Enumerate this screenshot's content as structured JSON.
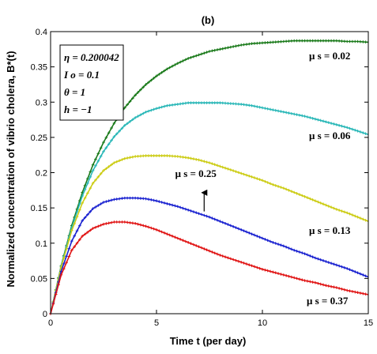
{
  "chart_data": {
    "type": "line",
    "title": "(b)",
    "xlabel": "Time t (per day)",
    "ylabel": "Normalized concentration of vibrio cholera, B*(t)",
    "xlim": [
      0,
      15
    ],
    "ylim": [
      0,
      0.4
    ],
    "xticks": [
      "0",
      "5",
      "10",
      "15"
    ],
    "yticks": [
      "0",
      "0.05",
      "0.1",
      "0.15",
      "0.2",
      "0.25",
      "0.3",
      "0.35",
      "0.4"
    ],
    "grid": false,
    "parameters": [
      "η = 0.200042",
      "I o = 0.1",
      "θ = 1",
      "h = −1"
    ],
    "series": [
      {
        "name": "μ s = 0.02",
        "color": "#1a7a1a",
        "x": [
          0,
          0.5,
          1,
          1.5,
          2,
          2.5,
          3,
          3.5,
          4,
          4.5,
          5,
          5.5,
          6,
          6.5,
          7,
          7.5,
          8,
          8.5,
          9,
          9.5,
          10,
          10.5,
          11,
          11.5,
          12,
          12.5,
          13,
          13.5,
          14,
          14.5,
          15
        ],
        "y": [
          0,
          0.068,
          0.125,
          0.172,
          0.211,
          0.243,
          0.27,
          0.292,
          0.31,
          0.325,
          0.337,
          0.347,
          0.355,
          0.362,
          0.367,
          0.372,
          0.375,
          0.378,
          0.381,
          0.383,
          0.384,
          0.385,
          0.386,
          0.387,
          0.387,
          0.387,
          0.387,
          0.387,
          0.386,
          0.386,
          0.385
        ]
      },
      {
        "name": "μ s = 0.06",
        "color": "#29b7b7",
        "x": [
          0,
          0.5,
          1,
          1.5,
          2,
          2.5,
          3,
          3.5,
          4,
          4.5,
          5,
          5.5,
          6,
          6.5,
          7,
          7.5,
          8,
          8.5,
          9,
          9.5,
          10,
          10.5,
          11,
          11.5,
          12,
          12.5,
          13,
          13.5,
          14,
          14.5,
          15
        ],
        "y": [
          0,
          0.067,
          0.122,
          0.167,
          0.203,
          0.23,
          0.251,
          0.267,
          0.278,
          0.286,
          0.291,
          0.295,
          0.297,
          0.299,
          0.299,
          0.299,
          0.299,
          0.298,
          0.297,
          0.295,
          0.292,
          0.289,
          0.286,
          0.283,
          0.28,
          0.276,
          0.272,
          0.268,
          0.264,
          0.259,
          0.254
        ]
      },
      {
        "name": "μ s = 0.13",
        "color": "#cccc14",
        "x": [
          0,
          0.5,
          1,
          1.5,
          2,
          2.5,
          3,
          3.5,
          4,
          4.5,
          5,
          5.5,
          6,
          6.5,
          7,
          7.5,
          8,
          8.5,
          9,
          9.5,
          10,
          10.5,
          11,
          11.5,
          12,
          12.5,
          13,
          13.5,
          14,
          14.5,
          15
        ],
        "y": [
          0,
          0.066,
          0.118,
          0.157,
          0.185,
          0.203,
          0.214,
          0.22,
          0.223,
          0.224,
          0.224,
          0.224,
          0.223,
          0.221,
          0.218,
          0.214,
          0.209,
          0.204,
          0.199,
          0.194,
          0.189,
          0.183,
          0.178,
          0.172,
          0.166,
          0.16,
          0.154,
          0.148,
          0.143,
          0.137,
          0.131
        ]
      },
      {
        "name": "μ s = 0.25",
        "color": "#1a22d0",
        "x": [
          0,
          0.5,
          1,
          1.5,
          2,
          2.5,
          3,
          3.5,
          4,
          4.5,
          5,
          5.5,
          6,
          6.5,
          7,
          7.5,
          8,
          8.5,
          9,
          9.5,
          10,
          10.5,
          11,
          11.5,
          12,
          12.5,
          13,
          13.5,
          14,
          14.5,
          15
        ],
        "y": [
          0,
          0.06,
          0.103,
          0.132,
          0.149,
          0.158,
          0.162,
          0.164,
          0.164,
          0.163,
          0.16,
          0.156,
          0.152,
          0.147,
          0.142,
          0.137,
          0.131,
          0.125,
          0.119,
          0.113,
          0.107,
          0.101,
          0.096,
          0.09,
          0.085,
          0.079,
          0.074,
          0.069,
          0.064,
          0.058,
          0.052
        ]
      },
      {
        "name": "μ s = 0.37",
        "color": "#e01414",
        "x": [
          0,
          0.5,
          1,
          1.5,
          2,
          2.5,
          3,
          3.5,
          4,
          4.5,
          5,
          5.5,
          6,
          6.5,
          7,
          7.5,
          8,
          8.5,
          9,
          9.5,
          10,
          10.5,
          11,
          11.5,
          12,
          12.5,
          13,
          13.5,
          14,
          14.5,
          15
        ],
        "y": [
          0,
          0.055,
          0.09,
          0.11,
          0.121,
          0.127,
          0.13,
          0.13,
          0.128,
          0.124,
          0.119,
          0.113,
          0.107,
          0.101,
          0.095,
          0.089,
          0.083,
          0.078,
          0.073,
          0.068,
          0.063,
          0.059,
          0.055,
          0.051,
          0.047,
          0.044,
          0.04,
          0.037,
          0.033,
          0.03,
          0.027
        ]
      }
    ],
    "annotations": [
      {
        "text": "μ s = 0.25",
        "arrow_from": [
          7.25,
          0.145
        ],
        "arrow_to": [
          7.25,
          0.175
        ],
        "text_at": [
          7.0,
          0.185
        ]
      }
    ]
  }
}
